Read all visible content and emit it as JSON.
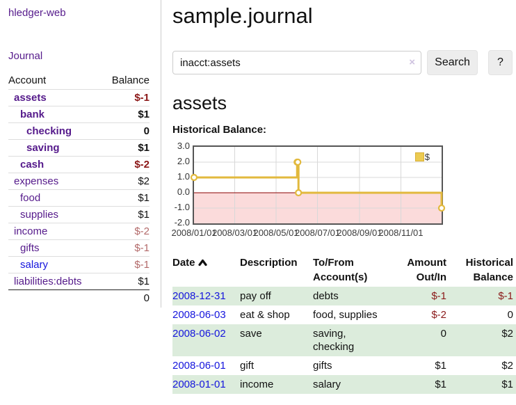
{
  "sidebar": {
    "brand": "hledger-web",
    "nav": {
      "journal": "Journal"
    },
    "accounts_table": {
      "headers": {
        "account": "Account",
        "balance": "Balance"
      },
      "rows": [
        {
          "name": "assets",
          "balance": "$-1"
        },
        {
          "name": "bank",
          "balance": "$1"
        },
        {
          "name": "checking",
          "balance": "0"
        },
        {
          "name": "saving",
          "balance": "$1"
        },
        {
          "name": "cash",
          "balance": "$-2"
        },
        {
          "name": "expenses",
          "balance": "$2"
        },
        {
          "name": "food",
          "balance": "$1"
        },
        {
          "name": "supplies",
          "balance": "$1"
        },
        {
          "name": "income",
          "balance": "$-2"
        },
        {
          "name": "gifts",
          "balance": "$-1"
        },
        {
          "name": "salary",
          "balance": "$-1"
        },
        {
          "name": "liabilities:debts",
          "balance": "$1"
        }
      ],
      "total": "0"
    }
  },
  "header": {
    "title": "sample.journal"
  },
  "search": {
    "value": "inacct:assets",
    "clear_icon": "×",
    "button_label": "Search",
    "help_label": "?"
  },
  "account_page": {
    "heading": "assets",
    "chart_label": "Historical Balance:"
  },
  "chart_data": {
    "type": "line",
    "subtype": "step-after",
    "title": "Historical Balance",
    "series": [
      {
        "name": "$",
        "color": "#e2b93d",
        "points": [
          [
            "2008/01/01",
            1
          ],
          [
            "2008/06/01",
            2
          ],
          [
            "2008/06/02",
            2
          ],
          [
            "2008/06/03",
            0
          ],
          [
            "2008/12/31",
            -1
          ]
        ]
      }
    ],
    "x_range": [
      "2008/01/01",
      "2008/12/31"
    ],
    "ylim": [
      -2,
      3
    ],
    "y_ticks": [
      3.0,
      2.0,
      1.0,
      0.0,
      -1.0,
      -2.0
    ],
    "x_ticks": [
      "2008/01/01",
      "2008/03/01",
      "2008/05/01",
      "2008/07/01",
      "2008/09/01",
      "2008/11/01"
    ],
    "grid": true,
    "legend_position": "top-right",
    "negative_fill": "#fbdbdb",
    "zero_line_color": "#8b0000"
  },
  "register": {
    "headers": {
      "date": "Date",
      "description": "Description",
      "accounts": "To/From Account(s)",
      "amount": "Amount Out/In",
      "balance": "Historical Balance"
    },
    "rows": [
      {
        "date": "2008-12-31",
        "description": "pay off",
        "accounts": "debts",
        "amount": "$-1",
        "balance": "$-1"
      },
      {
        "date": "2008-06-03",
        "description": "eat & shop",
        "accounts": "food, supplies",
        "amount": "$-2",
        "balance": "0"
      },
      {
        "date": "2008-06-02",
        "description": "save",
        "accounts": "saving, checking",
        "amount": "0",
        "balance": "$2"
      },
      {
        "date": "2008-06-01",
        "description": "gift",
        "accounts": "gifts",
        "amount": "$1",
        "balance": "$2"
      },
      {
        "date": "2008-01-01",
        "description": "income",
        "accounts": "salary",
        "amount": "$1",
        "balance": "$1"
      }
    ]
  },
  "colors": {
    "link_purple": "#551a8b",
    "link_blue": "#1515dd",
    "negative_strong": "#8b1717",
    "negative_soft": "#b36a6a",
    "row_green": "#dcecdc",
    "chart_gold": "#e2b93d"
  }
}
